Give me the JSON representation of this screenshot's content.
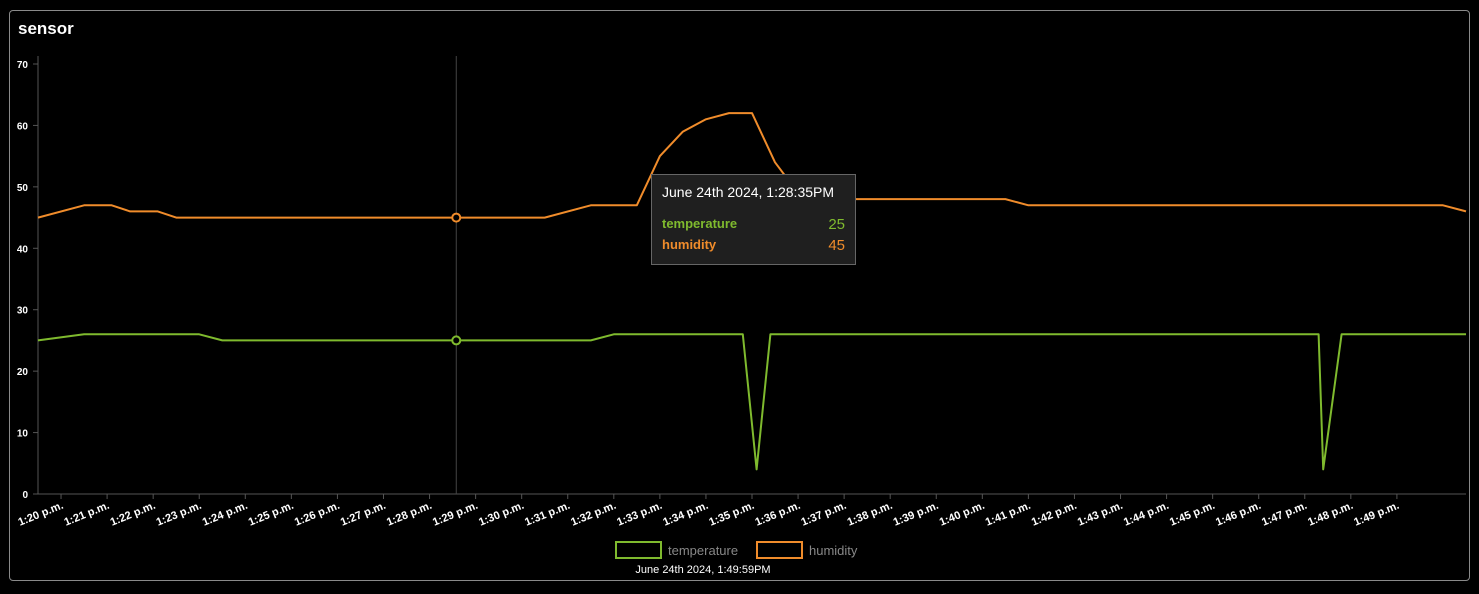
{
  "panel": {
    "title": "sensor"
  },
  "colors": {
    "temperature": "#7fba2e",
    "humidity": "#f08c2b",
    "axis": "#555555",
    "crosshair": "#444444"
  },
  "chart_data": {
    "type": "line",
    "title": "sensor",
    "ylim": [
      0,
      70
    ],
    "y_ticks": [
      0,
      10,
      20,
      30,
      40,
      50,
      60,
      70
    ],
    "x_range_minutes": [
      19.5,
      50.5
    ],
    "x_tick_labels": [
      "1:20 p.m.",
      "1:21 p.m.",
      "1:22 p.m.",
      "1:23 p.m.",
      "1:24 p.m.",
      "1:25 p.m.",
      "1:26 p.m.",
      "1:27 p.m.",
      "1:28 p.m.",
      "1:29 p.m.",
      "1:30 p.m.",
      "1:31 p.m.",
      "1:32 p.m.",
      "1:33 p.m.",
      "1:34 p.m.",
      "1:35 p.m.",
      "1:36 p.m.",
      "1:37 p.m.",
      "1:38 p.m.",
      "1:39 p.m.",
      "1:40 p.m.",
      "1:41 p.m.",
      "1:42 p.m.",
      "1:43 p.m.",
      "1:44 p.m.",
      "1:45 p.m.",
      "1:46 p.m.",
      "1:47 p.m.",
      "1:48 p.m.",
      "1:49 p.m."
    ],
    "x_tick_minutes": [
      20,
      21,
      22,
      23,
      24,
      25,
      26,
      27,
      28,
      29,
      30,
      31,
      32,
      33,
      34,
      35,
      36,
      37,
      38,
      39,
      40,
      41,
      42,
      43,
      44,
      45,
      46,
      47,
      48,
      49
    ],
    "grid": false,
    "legend_placement": "bottom-center",
    "series": [
      {
        "name": "temperature",
        "points": [
          [
            19.5,
            25
          ],
          [
            20.5,
            26
          ],
          [
            22.0,
            26
          ],
          [
            23.0,
            26
          ],
          [
            23.5,
            25
          ],
          [
            25.0,
            25
          ],
          [
            28.5,
            25
          ],
          [
            29.0,
            25
          ],
          [
            30.0,
            25
          ],
          [
            31.5,
            25
          ],
          [
            32.0,
            26
          ],
          [
            33.0,
            26
          ],
          [
            34.0,
            26
          ],
          [
            34.8,
            26
          ],
          [
            35.1,
            4
          ],
          [
            35.4,
            26
          ],
          [
            36.0,
            26
          ],
          [
            40.0,
            26
          ],
          [
            44.0,
            26
          ],
          [
            47.3,
            26
          ],
          [
            47.4,
            4
          ],
          [
            47.8,
            26
          ],
          [
            48.0,
            26
          ],
          [
            50.5,
            26
          ]
        ]
      },
      {
        "name": "humidity",
        "points": [
          [
            19.5,
            45
          ],
          [
            20.5,
            47
          ],
          [
            21.1,
            47
          ],
          [
            21.5,
            46
          ],
          [
            22.1,
            46
          ],
          [
            22.5,
            45
          ],
          [
            25.0,
            45
          ],
          [
            28.5,
            45
          ],
          [
            29.0,
            45
          ],
          [
            30.0,
            45
          ],
          [
            30.5,
            45
          ],
          [
            31.5,
            47
          ],
          [
            32.0,
            47
          ],
          [
            32.5,
            47
          ],
          [
            33.0,
            55
          ],
          [
            33.5,
            59
          ],
          [
            34.0,
            61
          ],
          [
            34.5,
            62
          ],
          [
            35.0,
            62
          ],
          [
            35.5,
            54
          ],
          [
            36.0,
            49
          ],
          [
            37.0,
            48
          ],
          [
            40.0,
            48
          ],
          [
            40.5,
            48
          ],
          [
            41.0,
            47
          ],
          [
            45.0,
            47
          ],
          [
            50.0,
            47
          ],
          [
            50.5,
            46
          ]
        ]
      }
    ],
    "crosshair_minute": 28.58
  },
  "tooltip": {
    "title": "June 24th 2024, 1:28:35PM",
    "rows": [
      {
        "label": "temperature",
        "value": "25"
      },
      {
        "label": "humidity",
        "value": "45"
      }
    ]
  },
  "legend": {
    "items": [
      {
        "label": "temperature"
      },
      {
        "label": "humidity"
      }
    ]
  },
  "footer": {
    "timestamp": "June 24th 2024, 1:49:59PM"
  }
}
